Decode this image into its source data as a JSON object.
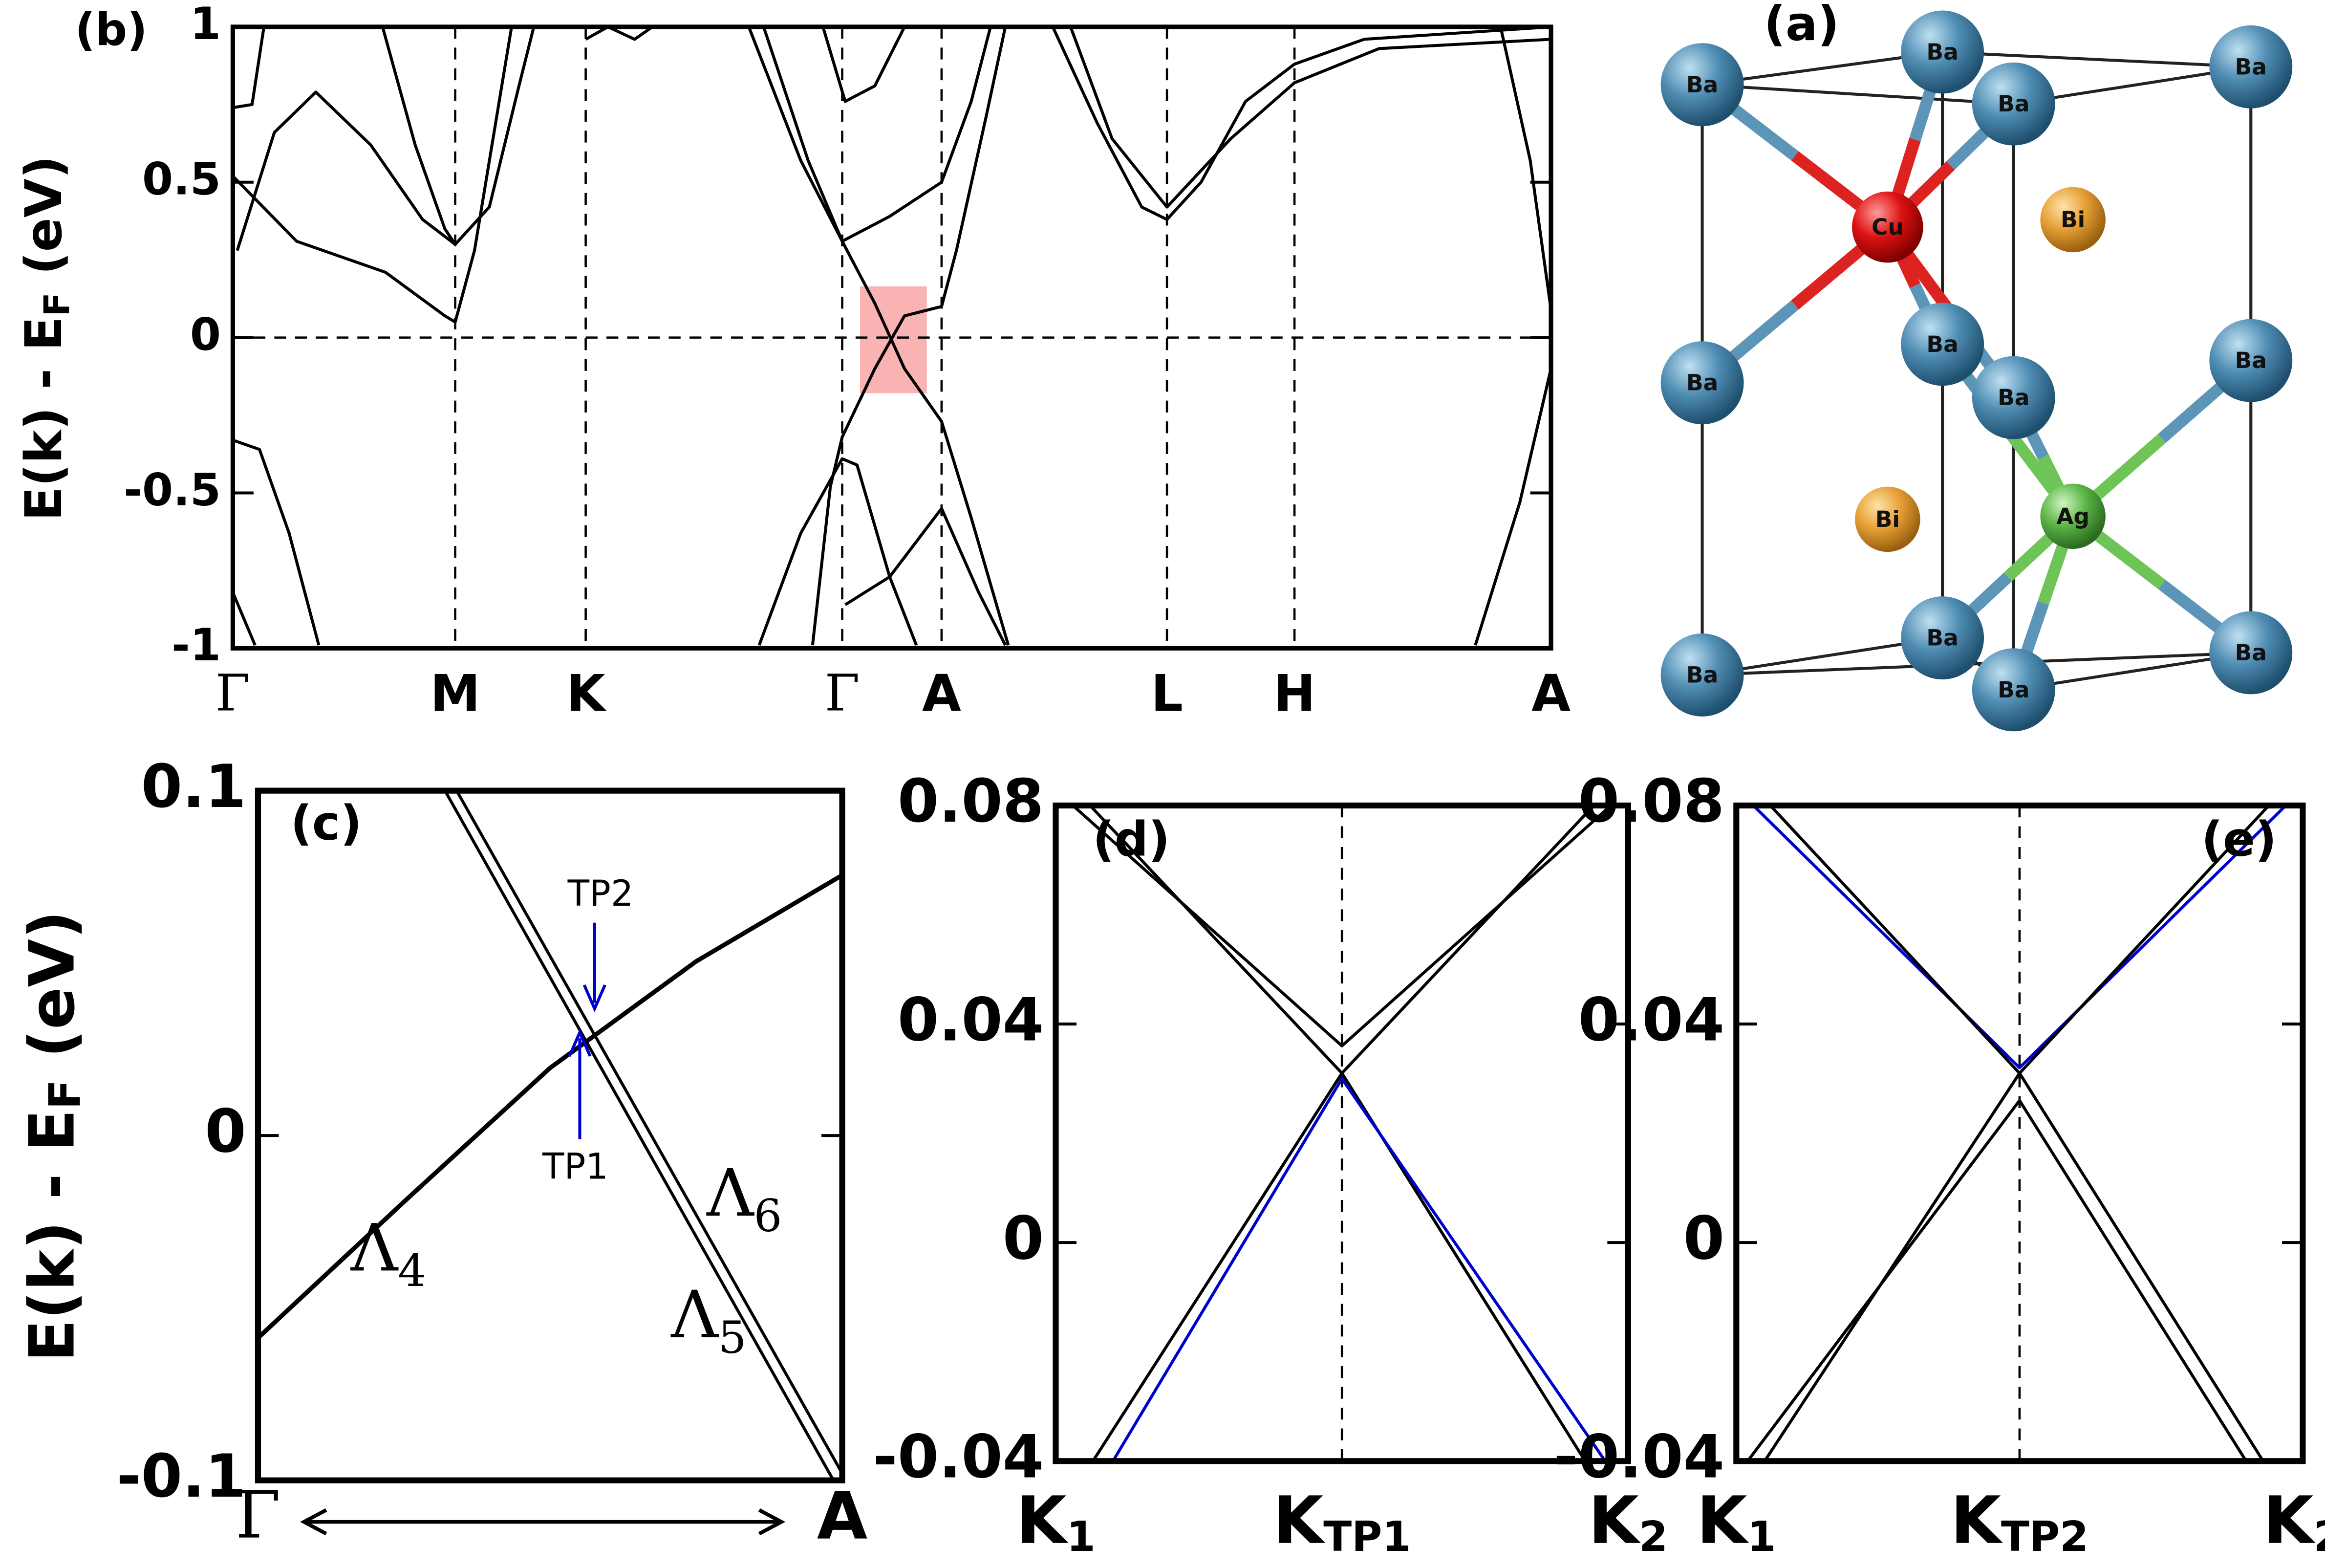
{
  "chart_data": [
    {
      "type": "line",
      "label": "(b)",
      "ylabel": {
        "text": "E(k) - E",
        "sub": "F",
        "tail": " (eV)"
      },
      "xlim": [
        0,
        8.89
      ],
      "ylim": [
        -1,
        1
      ],
      "yticks": [
        -1,
        -0.5,
        0,
        0.5,
        1
      ],
      "xticks": [
        {
          "value": 0,
          "label": "Γ"
        },
        {
          "value": 1.5,
          "label": "M"
        },
        {
          "value": 2.38,
          "label": "K"
        },
        {
          "value": 4.11,
          "label": "Γ"
        },
        {
          "value": 4.78,
          "label": "A"
        },
        {
          "value": 6.3,
          "label": "L"
        },
        {
          "value": 7.16,
          "label": "H"
        },
        {
          "value": 8.89,
          "label": "A"
        }
      ],
      "xgrid": true,
      "zero_line": true,
      "series": [
        {
          "color": "#000",
          "x": [
            0.03,
            0.28,
            0.56,
            0.93,
            1.28,
            1.5,
            1.73,
            1.93,
            2.03
          ],
          "values": [
            0.28,
            0.66,
            0.79,
            0.62,
            0.38,
            0.3,
            0.42,
            0.81,
            1.0
          ]
        },
        {
          "color": "#000",
          "x": [
            0,
            0.43,
            1.03,
            1.43,
            1.5,
            1.63,
            1.88
          ],
          "values": [
            0.52,
            0.31,
            0.21,
            0.07,
            0.05,
            0.28,
            1.0
          ]
        },
        {
          "color": "#000",
          "x": [
            1.01,
            1.23,
            1.43,
            1.5
          ],
          "values": [
            1.0,
            0.62,
            0.35,
            0.3
          ]
        },
        {
          "color": "#000",
          "x": [
            0,
            0.13,
            0.21
          ],
          "values": [
            0.74,
            0.75,
            1.0
          ]
        },
        {
          "color": "#000",
          "x": [
            2.38,
            2.53,
            2.71,
            2.83
          ],
          "values": [
            0.96,
            1.0,
            0.96,
            1.0
          ]
        },
        {
          "color": "#000",
          "x": [
            3.48,
            3.83,
            4.11,
            4.43,
            4.78,
            4.98,
            5.11
          ],
          "values": [
            1.0,
            0.57,
            0.31,
            0.39,
            0.5,
            0.76,
            1.0
          ]
        },
        {
          "color": "#000",
          "x": [
            3.58,
            3.88,
            4.11,
            4.33,
            4.53,
            4.78,
            4.98,
            5.23
          ],
          "values": [
            1.0,
            0.57,
            0.31,
            0.11,
            -0.1,
            -0.27,
            -0.58,
            -0.99
          ]
        },
        {
          "color": "#000",
          "x": [
            3.91,
            4.03,
            4.11,
            4.33,
            4.53,
            4.78,
            4.88,
            5.08,
            5.21
          ],
          "values": [
            -0.99,
            -0.48,
            -0.32,
            -0.1,
            0.07,
            0.1,
            0.28,
            0.71,
            1.0
          ]
        },
        {
          "color": "#000",
          "x": [
            3.98,
            4.13,
            4.33,
            4.53
          ],
          "values": [
            1.0,
            0.76,
            0.81,
            1.0
          ]
        },
        {
          "color": "#000",
          "x": [
            3.55,
            3.83,
            4.11,
            4.21,
            4.43,
            4.61
          ],
          "values": [
            -0.99,
            -0.63,
            -0.39,
            -0.41,
            -0.77,
            -0.99
          ]
        },
        {
          "color": "#000",
          "x": [
            4.13,
            4.43,
            4.78,
            5.03,
            5.21
          ],
          "values": [
            -0.86,
            -0.77,
            -0.55,
            -0.82,
            -0.99
          ]
        },
        {
          "color": "#000",
          "x": [
            5.53,
            5.83,
            6.13,
            6.3,
            6.53,
            6.83,
            7.16,
            7.63,
            8.89
          ],
          "values": [
            1.0,
            0.69,
            0.42,
            0.38,
            0.5,
            0.76,
            0.88,
            0.96,
            1.0
          ]
        },
        {
          "color": "#000",
          "x": [
            5.65,
            5.93,
            6.3,
            6.73,
            7.16,
            7.73,
            8.89
          ],
          "values": [
            1.0,
            0.64,
            0.42,
            0.64,
            0.82,
            0.93,
            0.96
          ]
        },
        {
          "color": "#000",
          "x": [
            8.55,
            8.75,
            8.89
          ],
          "values": [
            1.0,
            0.57,
            0.09
          ]
        },
        {
          "color": "#000",
          "x": [
            8.38,
            8.68,
            8.89
          ],
          "values": [
            -0.99,
            -0.53,
            -0.1
          ]
        },
        {
          "color": "#000",
          "x": [
            0,
            0.18,
            0.38,
            0.58
          ],
          "values": [
            -0.33,
            -0.36,
            -0.63,
            -0.99
          ]
        },
        {
          "color": "#000",
          "x": [
            0,
            0.15
          ],
          "values": [
            -0.82,
            -0.99
          ]
        }
      ]
    },
    {
      "type": "line",
      "label": "(c)",
      "ylabel": {
        "text": "E(k) - E",
        "sub": "F",
        "tail": " (eV)"
      },
      "xlim": [
        0,
        1
      ],
      "ylim": [
        -0.1,
        0.1
      ],
      "yticks": [
        -0.1,
        0,
        0.1
      ],
      "xticks": [
        {
          "value": 0,
          "label": "Γ"
        },
        {
          "value": 1,
          "label": "A"
        }
      ],
      "annotations": [
        {
          "text": "TP2"
        },
        {
          "text": "TP1"
        },
        {
          "text": "Λ",
          "sub": "4"
        },
        {
          "text": "Λ",
          "sub": "6"
        },
        {
          "text": "Λ",
          "sub": "5"
        }
      ],
      "series": [
        {
          "color": "#000",
          "x": [
            0,
            0.25,
            0.5,
            0.75,
            1
          ],
          "values": [
            -0.0587,
            -0.0192,
            0.0196,
            0.0505,
            0.0755
          ]
        },
        {
          "color": "#000",
          "x": [
            0.32,
            0.985
          ],
          "values": [
            0.1,
            -0.1
          ]
        },
        {
          "color": "#000",
          "x": [
            0.34,
            1
          ],
          "values": [
            0.1,
            -0.098
          ]
        }
      ]
    },
    {
      "type": "line",
      "label": "(d)",
      "xlim": [
        0,
        1
      ],
      "ylim": [
        -0.04,
        0.08
      ],
      "yticks": [
        -0.04,
        0,
        0.04,
        0.08
      ],
      "xticks": [
        {
          "value": 0,
          "label": "K",
          "sub": "1"
        },
        {
          "value": 0.5,
          "label": "K",
          "sub": "TP1"
        },
        {
          "value": 1,
          "label": "K",
          "sub": "2"
        }
      ],
      "xgrid": true,
      "series": [
        {
          "color": "#000",
          "x": [
            0.03,
            0.5,
            0.97
          ],
          "values": [
            0.08,
            0.036,
            0.08
          ]
        },
        {
          "color": "#000",
          "x": [
            0.06,
            0.5,
            0.94
          ],
          "values": [
            0.08,
            0.031,
            0.08
          ]
        },
        {
          "color": "#000",
          "x": [
            0.065,
            0.5,
            0.925
          ],
          "values": [
            -0.04,
            0.031,
            -0.04
          ]
        },
        {
          "color": "#0000cc",
          "x": [
            0.1,
            0.5,
            0.96
          ],
          "values": [
            -0.04,
            0.03,
            -0.04
          ]
        }
      ]
    },
    {
      "type": "line",
      "label": "(e)",
      "xlim": [
        0,
        1
      ],
      "ylim": [
        -0.04,
        0.08
      ],
      "yticks": [
        -0.04,
        0,
        0.04,
        0.08
      ],
      "xticks": [
        {
          "value": 0,
          "label": "K",
          "sub": "1"
        },
        {
          "value": 0.5,
          "label": "K",
          "sub": "TP2"
        },
        {
          "value": 1,
          "label": "K",
          "sub": "2"
        }
      ],
      "xgrid": true,
      "series": [
        {
          "color": "#0000cc",
          "x": [
            0.03,
            0.5,
            0.97
          ],
          "values": [
            0.08,
            0.032,
            0.08
          ]
        },
        {
          "color": "#000",
          "x": [
            0.06,
            0.5,
            0.94
          ],
          "values": [
            0.08,
            0.031,
            0.08
          ]
        },
        {
          "color": "#000",
          "x": [
            0.02,
            0.5,
            0.9
          ],
          "values": [
            -0.04,
            0.026,
            -0.04
          ]
        },
        {
          "color": "#000",
          "x": [
            0.05,
            0.5,
            0.93
          ],
          "values": [
            -0.04,
            0.031,
            -0.04
          ]
        }
      ]
    }
  ],
  "structure": {
    "label": "(a)",
    "atoms": [
      "Ba",
      "Ba",
      "Ba",
      "Ba",
      "Ba",
      "Ba",
      "Ba",
      "Ba",
      "Ba",
      "Ba",
      "Ba",
      "Ba",
      "Cu",
      "Bi",
      "Bi",
      "Ag"
    ]
  }
}
